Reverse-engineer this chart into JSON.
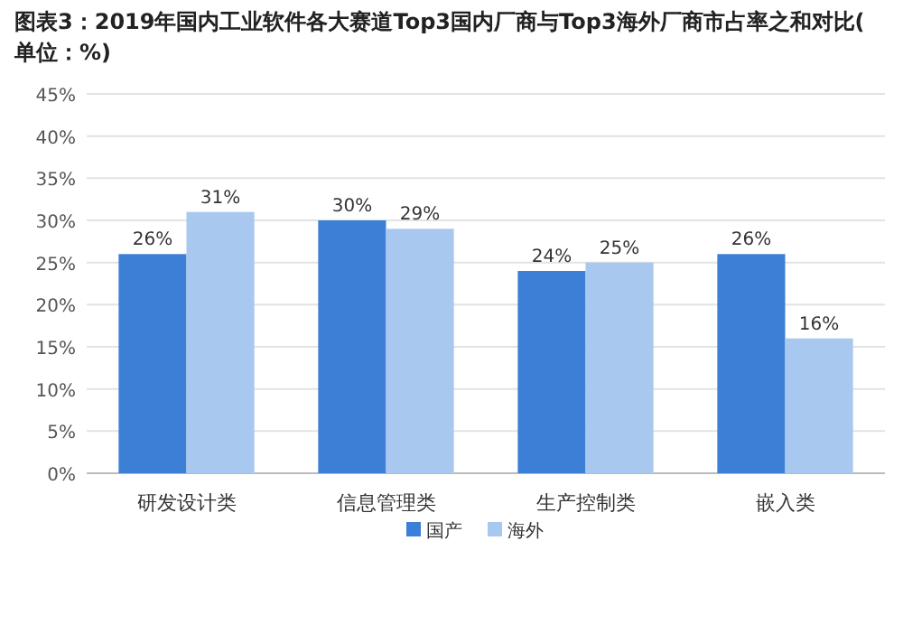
{
  "chart_data": {
    "type": "bar",
    "title": "图表3：2019年国内工业软件各大赛道Top3国内厂商与Top3海外厂商市占率之和对比(单位：%)",
    "categories": [
      "研发设计类",
      "信息管理类",
      "生产控制类",
      "嵌入类"
    ],
    "series": [
      {
        "name": "国产",
        "color": "#3c7fd6",
        "values": [
          26,
          30,
          24,
          26
        ],
        "value_labels": [
          "26%",
          "30%",
          "24%",
          "26%"
        ]
      },
      {
        "name": "海外",
        "color": "#a9c8f0",
        "values": [
          31,
          29,
          25,
          16
        ],
        "value_labels": [
          "31%",
          "29%",
          "25%",
          "16%"
        ]
      }
    ],
    "ylim": [
      0,
      45
    ],
    "yticks": [
      {
        "value": 0,
        "label": "0%"
      },
      {
        "value": 5,
        "label": "5%"
      },
      {
        "value": 10,
        "label": "10%"
      },
      {
        "value": 15,
        "label": "15%"
      },
      {
        "value": 20,
        "label": "20%"
      },
      {
        "value": 25,
        "label": "25%"
      },
      {
        "value": 30,
        "label": "30%"
      },
      {
        "value": 35,
        "label": "35%"
      },
      {
        "value": 40,
        "label": "40%"
      },
      {
        "value": 45,
        "label": "45%"
      }
    ],
    "grid": "y",
    "legend": "bottom left"
  }
}
